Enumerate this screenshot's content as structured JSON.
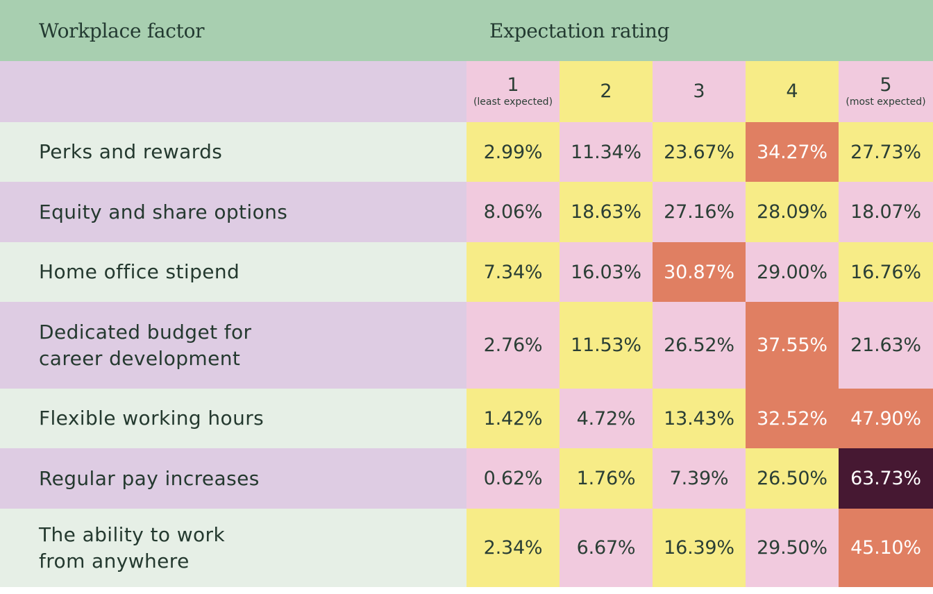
{
  "colors": {
    "header_bg": "#a8cfb0",
    "row_light": "#e6efe6",
    "row_lavender": "#decce3",
    "cell_pink": "#f1cade",
    "cell_yellow": "#f7ec87",
    "cell_orange": "#e07f62",
    "cell_dark": "#461832",
    "text_dark": "#2a3e35",
    "text_light": "#ffffff"
  },
  "chart_data": {
    "type": "table",
    "header": {
      "factor_label": "Workplace factor",
      "rating_label": "Expectation rating"
    },
    "columns": [
      {
        "num": "1",
        "sub": "(least expected)"
      },
      {
        "num": "2",
        "sub": ""
      },
      {
        "num": "3",
        "sub": ""
      },
      {
        "num": "4",
        "sub": ""
      },
      {
        "num": "5",
        "sub": "(most expected)"
      }
    ],
    "rows": [
      {
        "label": "Perks and rewards",
        "values": [
          "2.99%",
          "11.34%",
          "23.67%",
          "34.27%",
          "27.73%"
        ],
        "fills": [
          "yellow",
          "pink",
          "yellow",
          "orange",
          "yellow"
        ]
      },
      {
        "label": "Equity and share options",
        "values": [
          "8.06%",
          "18.63%",
          "27.16%",
          "28.09%",
          "18.07%"
        ],
        "fills": [
          "pink",
          "yellow",
          "pink",
          "yellow",
          "pink"
        ]
      },
      {
        "label": "Home office stipend",
        "values": [
          "7.34%",
          "16.03%",
          "30.87%",
          "29.00%",
          "16.76%"
        ],
        "fills": [
          "yellow",
          "pink",
          "orange",
          "pink",
          "yellow"
        ]
      },
      {
        "label": "Dedicated budget for\ncareer development",
        "values": [
          "2.76%",
          "11.53%",
          "26.52%",
          "37.55%",
          "21.63%"
        ],
        "fills": [
          "pink",
          "yellow",
          "pink",
          "orange",
          "pink"
        ]
      },
      {
        "label": "Flexible working hours",
        "values": [
          "1.42%",
          "4.72%",
          "13.43%",
          "32.52%",
          "47.90%"
        ],
        "fills": [
          "yellow",
          "pink",
          "yellow",
          "orange",
          "orange"
        ]
      },
      {
        "label": "Regular pay increases",
        "values": [
          "0.62%",
          "1.76%",
          "7.39%",
          "26.50%",
          "63.73%"
        ],
        "fills": [
          "pink",
          "yellow",
          "pink",
          "yellow",
          "dark"
        ]
      },
      {
        "label": "The ability to work\nfrom anywhere",
        "values": [
          "2.34%",
          "6.67%",
          "16.39%",
          "29.50%",
          "45.10%"
        ],
        "fills": [
          "yellow",
          "pink",
          "yellow",
          "pink",
          "orange"
        ]
      }
    ]
  }
}
